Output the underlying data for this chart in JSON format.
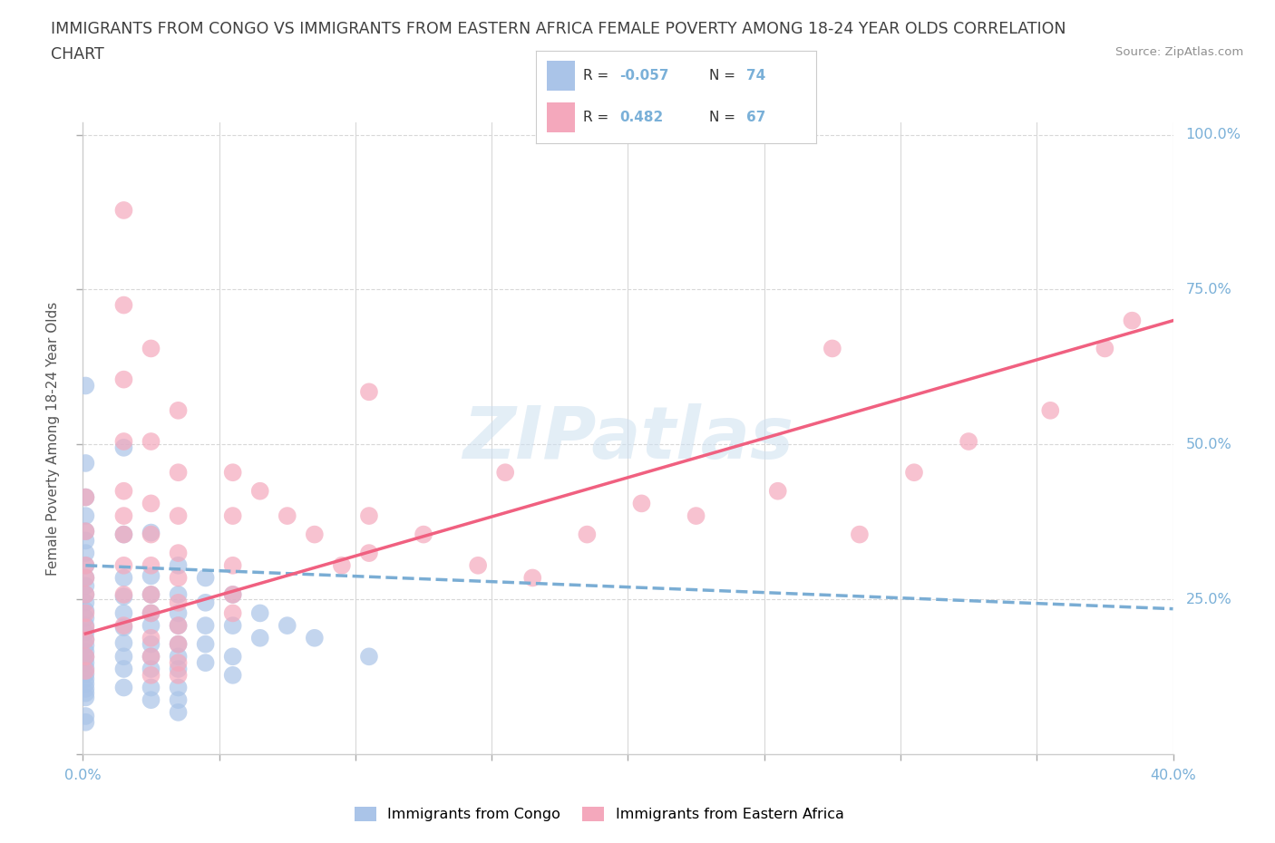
{
  "title_line1": "IMMIGRANTS FROM CONGO VS IMMIGRANTS FROM EASTERN AFRICA FEMALE POVERTY AMONG 18-24 YEAR OLDS CORRELATION",
  "title_line2": "CHART",
  "source_text": "Source: ZipAtlas.com",
  "ylabel": "Female Poverty Among 18-24 Year Olds",
  "watermark": "ZIPatlas",
  "legend_R_congo": "-0.057",
  "legend_N_congo": "74",
  "legend_R_eastern": "0.482",
  "legend_N_eastern": "67",
  "color_congo": "#aac4e8",
  "color_eastern": "#f4a8bc",
  "trendline_congo": "#7aadd4",
  "trendline_eastern": "#f06080",
  "background_color": "#ffffff",
  "grid_color": "#d8d8d8",
  "title_color": "#404040",
  "source_color": "#909090",
  "right_label_color": "#7ab0d8",
  "legend_text_color": "#333333",
  "congo_scatter": [
    [
      0.001,
      0.595
    ],
    [
      0.001,
      0.47
    ],
    [
      0.001,
      0.415
    ],
    [
      0.001,
      0.385
    ],
    [
      0.001,
      0.36
    ],
    [
      0.001,
      0.345
    ],
    [
      0.001,
      0.325
    ],
    [
      0.001,
      0.305
    ],
    [
      0.001,
      0.285
    ],
    [
      0.001,
      0.272
    ],
    [
      0.001,
      0.258
    ],
    [
      0.001,
      0.245
    ],
    [
      0.001,
      0.232
    ],
    [
      0.001,
      0.22
    ],
    [
      0.001,
      0.208
    ],
    [
      0.001,
      0.197
    ],
    [
      0.001,
      0.186
    ],
    [
      0.001,
      0.176
    ],
    [
      0.001,
      0.166
    ],
    [
      0.001,
      0.157
    ],
    [
      0.001,
      0.148
    ],
    [
      0.001,
      0.139
    ],
    [
      0.001,
      0.13
    ],
    [
      0.001,
      0.122
    ],
    [
      0.001,
      0.114
    ],
    [
      0.001,
      0.106
    ],
    [
      0.001,
      0.099
    ],
    [
      0.001,
      0.092
    ],
    [
      0.001,
      0.062
    ],
    [
      0.001,
      0.052
    ],
    [
      0.015,
      0.495
    ],
    [
      0.015,
      0.355
    ],
    [
      0.015,
      0.285
    ],
    [
      0.015,
      0.255
    ],
    [
      0.015,
      0.228
    ],
    [
      0.015,
      0.205
    ],
    [
      0.015,
      0.18
    ],
    [
      0.015,
      0.158
    ],
    [
      0.015,
      0.138
    ],
    [
      0.015,
      0.108
    ],
    [
      0.025,
      0.358
    ],
    [
      0.025,
      0.288
    ],
    [
      0.025,
      0.258
    ],
    [
      0.025,
      0.228
    ],
    [
      0.025,
      0.208
    ],
    [
      0.025,
      0.178
    ],
    [
      0.025,
      0.158
    ],
    [
      0.025,
      0.138
    ],
    [
      0.025,
      0.108
    ],
    [
      0.025,
      0.088
    ],
    [
      0.035,
      0.305
    ],
    [
      0.035,
      0.258
    ],
    [
      0.035,
      0.228
    ],
    [
      0.035,
      0.208
    ],
    [
      0.035,
      0.178
    ],
    [
      0.035,
      0.158
    ],
    [
      0.035,
      0.138
    ],
    [
      0.035,
      0.108
    ],
    [
      0.035,
      0.088
    ],
    [
      0.035,
      0.068
    ],
    [
      0.045,
      0.285
    ],
    [
      0.045,
      0.245
    ],
    [
      0.045,
      0.208
    ],
    [
      0.045,
      0.178
    ],
    [
      0.045,
      0.148
    ],
    [
      0.055,
      0.258
    ],
    [
      0.055,
      0.208
    ],
    [
      0.055,
      0.158
    ],
    [
      0.055,
      0.128
    ],
    [
      0.065,
      0.228
    ],
    [
      0.065,
      0.188
    ],
    [
      0.075,
      0.208
    ],
    [
      0.085,
      0.188
    ],
    [
      0.105,
      0.158
    ]
  ],
  "eastern_scatter": [
    [
      0.001,
      0.415
    ],
    [
      0.001,
      0.36
    ],
    [
      0.001,
      0.305
    ],
    [
      0.001,
      0.285
    ],
    [
      0.001,
      0.258
    ],
    [
      0.001,
      0.228
    ],
    [
      0.001,
      0.205
    ],
    [
      0.001,
      0.185
    ],
    [
      0.001,
      0.158
    ],
    [
      0.001,
      0.135
    ],
    [
      0.015,
      0.878
    ],
    [
      0.015,
      0.725
    ],
    [
      0.015,
      0.605
    ],
    [
      0.015,
      0.505
    ],
    [
      0.015,
      0.425
    ],
    [
      0.015,
      0.385
    ],
    [
      0.015,
      0.355
    ],
    [
      0.015,
      0.305
    ],
    [
      0.015,
      0.258
    ],
    [
      0.015,
      0.208
    ],
    [
      0.025,
      0.655
    ],
    [
      0.025,
      0.505
    ],
    [
      0.025,
      0.405
    ],
    [
      0.025,
      0.355
    ],
    [
      0.025,
      0.305
    ],
    [
      0.025,
      0.258
    ],
    [
      0.025,
      0.228
    ],
    [
      0.025,
      0.188
    ],
    [
      0.025,
      0.158
    ],
    [
      0.025,
      0.128
    ],
    [
      0.035,
      0.555
    ],
    [
      0.035,
      0.455
    ],
    [
      0.035,
      0.385
    ],
    [
      0.035,
      0.325
    ],
    [
      0.035,
      0.285
    ],
    [
      0.035,
      0.245
    ],
    [
      0.035,
      0.208
    ],
    [
      0.035,
      0.178
    ],
    [
      0.035,
      0.148
    ],
    [
      0.035,
      0.128
    ],
    [
      0.055,
      0.455
    ],
    [
      0.055,
      0.385
    ],
    [
      0.055,
      0.305
    ],
    [
      0.055,
      0.258
    ],
    [
      0.055,
      0.228
    ],
    [
      0.065,
      0.425
    ],
    [
      0.075,
      0.385
    ],
    [
      0.085,
      0.355
    ],
    [
      0.095,
      0.305
    ],
    [
      0.105,
      0.585
    ],
    [
      0.105,
      0.385
    ],
    [
      0.105,
      0.325
    ],
    [
      0.125,
      0.355
    ],
    [
      0.145,
      0.305
    ],
    [
      0.155,
      0.455
    ],
    [
      0.165,
      0.285
    ],
    [
      0.185,
      0.355
    ],
    [
      0.205,
      0.405
    ],
    [
      0.225,
      0.385
    ],
    [
      0.255,
      0.425
    ],
    [
      0.275,
      0.655
    ],
    [
      0.285,
      0.355
    ],
    [
      0.305,
      0.455
    ],
    [
      0.325,
      0.505
    ],
    [
      0.355,
      0.555
    ],
    [
      0.375,
      0.655
    ],
    [
      0.385,
      0.7
    ]
  ],
  "congo_trendline_x": [
    0.001,
    0.4
  ],
  "congo_trendline_y": [
    0.305,
    0.235
  ],
  "eastern_trendline_x": [
    0.001,
    0.4
  ],
  "eastern_trendline_y": [
    0.195,
    0.7
  ],
  "xlim": [
    0,
    0.4
  ],
  "ylim": [
    0,
    1.02
  ],
  "xticks": [
    0,
    0.05,
    0.1,
    0.15,
    0.2,
    0.25,
    0.3,
    0.35,
    0.4
  ],
  "yticks": [
    0,
    0.25,
    0.5,
    0.75,
    1.0
  ]
}
